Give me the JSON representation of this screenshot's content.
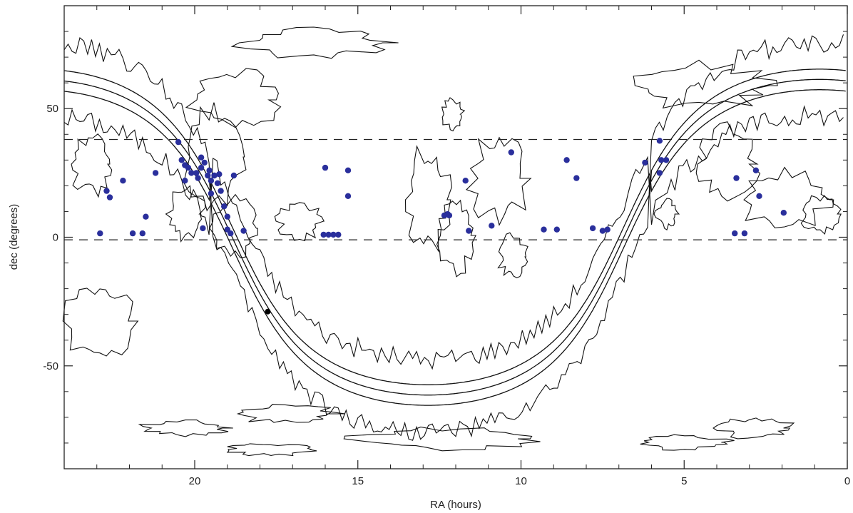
{
  "chart_data": {
    "type": "scatter",
    "xlabel": "RA (hours)",
    "ylabel": "dec (degrees)",
    "xlim": [
      24,
      0
    ],
    "ylim": [
      -90,
      90
    ],
    "x_ticks": [
      {
        "value": 20,
        "label": "20"
      },
      {
        "value": 15,
        "label": "15"
      },
      {
        "value": 10,
        "label": "10"
      },
      {
        "value": 5,
        "label": "5"
      },
      {
        "value": 0,
        "label": "0"
      }
    ],
    "y_ticks": [
      {
        "value": 50,
        "label": "50"
      },
      {
        "value": 0,
        "label": "0"
      },
      {
        "value": -50,
        "label": "-50"
      }
    ],
    "reference_lines": [
      {
        "dec": 38,
        "style": "dashed"
      },
      {
        "dec": -1,
        "style": "dashed"
      }
    ],
    "galactic_plane_band": {
      "description": "galactic plane and bounding contours",
      "lines": [
        {
          "style": "solid",
          "offset_deg": 0
        },
        {
          "style": "solid",
          "offset_deg": 4
        },
        {
          "style": "solid",
          "offset_deg": -4
        }
      ]
    },
    "marked_point": {
      "ra": 17.76,
      "dec": -28.9,
      "color": "#000000"
    },
    "series": [
      {
        "color": "#2a2f9c",
        "points": [
          [
            22.9,
            1.5
          ],
          [
            22.7,
            18
          ],
          [
            22.6,
            15.5
          ],
          [
            22.2,
            22
          ],
          [
            21.9,
            1.5
          ],
          [
            21.6,
            1.5
          ],
          [
            21.5,
            8
          ],
          [
            21.2,
            25
          ],
          [
            20.5,
            37
          ],
          [
            20.4,
            30
          ],
          [
            20.3,
            28
          ],
          [
            20.2,
            27
          ],
          [
            20.3,
            22
          ],
          [
            20.1,
            25
          ],
          [
            19.9,
            23
          ],
          [
            19.95,
            25
          ],
          [
            19.8,
            31
          ],
          [
            19.8,
            27
          ],
          [
            19.7,
            29
          ],
          [
            19.6,
            24
          ],
          [
            19.55,
            26
          ],
          [
            19.5,
            22
          ],
          [
            19.4,
            24
          ],
          [
            19.3,
            21
          ],
          [
            19.25,
            24.5
          ],
          [
            19.2,
            18
          ],
          [
            19.5,
            17
          ],
          [
            19.1,
            12
          ],
          [
            19.0,
            8
          ],
          [
            19.75,
            3.5
          ],
          [
            19.0,
            3
          ],
          [
            18.9,
            1.5
          ],
          [
            18.5,
            2.5
          ],
          [
            18.8,
            24
          ],
          [
            16.0,
            27
          ],
          [
            16.05,
            1
          ],
          [
            15.9,
            1
          ],
          [
            15.75,
            1
          ],
          [
            15.6,
            1
          ],
          [
            15.3,
            26
          ],
          [
            15.3,
            16
          ],
          [
            12.35,
            8.5
          ],
          [
            12.25,
            9
          ],
          [
            12.2,
            8.5
          ],
          [
            11.7,
            22
          ],
          [
            11.6,
            2.5
          ],
          [
            10.9,
            4.5
          ],
          [
            10.3,
            33
          ],
          [
            9.3,
            3
          ],
          [
            8.9,
            3
          ],
          [
            8.6,
            30
          ],
          [
            8.3,
            23
          ],
          [
            7.8,
            3.5
          ],
          [
            7.5,
            2.5
          ],
          [
            7.35,
            3
          ],
          [
            6.2,
            29
          ],
          [
            5.75,
            37.5
          ],
          [
            5.7,
            30
          ],
          [
            5.75,
            25
          ],
          [
            5.55,
            30
          ],
          [
            3.4,
            23
          ],
          [
            3.45,
            1.5
          ],
          [
            3.15,
            1.5
          ],
          [
            2.8,
            26
          ],
          [
            2.7,
            16
          ],
          [
            1.95,
            9.5
          ]
        ]
      }
    ]
  }
}
